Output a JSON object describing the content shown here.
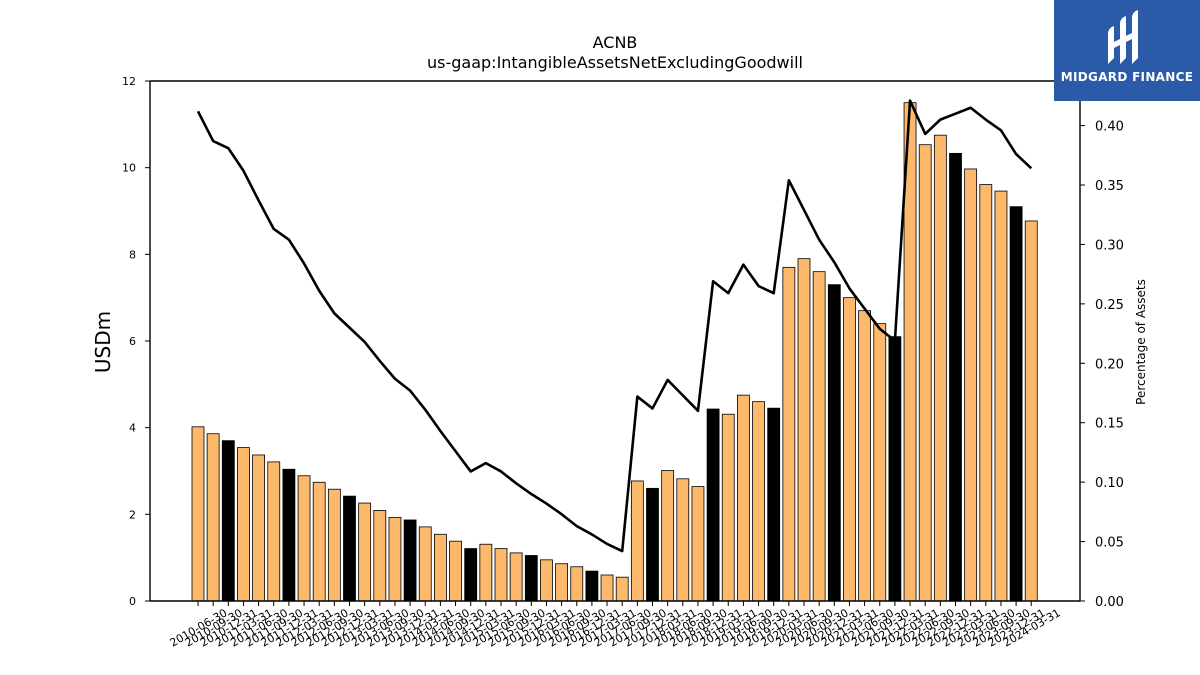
{
  "brand": {
    "name": "MIDGARD FINANCE",
    "logo_icon": "midgard-m-icon",
    "background": "#2a5aa8"
  },
  "chart_data": {
    "type": "bar",
    "title": "ACNB",
    "subtitle": "us-gaap:IntangibleAssetsNetExcludingGoodwill",
    "ylabel": "USDm",
    "y2label": "Percentage of Assets",
    "ylim": [
      0,
      12
    ],
    "yticks": [
      "0",
      "2",
      "4",
      "6",
      "8",
      "10",
      "12"
    ],
    "y2lim": [
      0,
      0.4375
    ],
    "y2ticks": [
      "0.00",
      "0.05",
      "0.10",
      "0.15",
      "0.20",
      "0.25",
      "0.30",
      "0.35",
      "0.40"
    ],
    "colors": {
      "bar": "#fdb96b",
      "bar_highlight": "#000000",
      "line": "#000000",
      "edge": "#000000"
    },
    "categories": [
      "2010-06-30",
      "2010-09-30",
      "2010-12-31",
      "2011-03-31",
      "2011-06-30",
      "2011-09-30",
      "2011-12-31",
      "2012-03-31",
      "2012-06-30",
      "2012-09-30",
      "2012-12-31",
      "2013-03-31",
      "2013-06-30",
      "2013-09-30",
      "2013-12-31",
      "2014-03-31",
      "2014-06-30",
      "2014-09-30",
      "2014-12-31",
      "2015-03-31",
      "2015-06-30",
      "2015-09-30",
      "2015-12-31",
      "2016-03-31",
      "2016-06-30",
      "2016-09-30",
      "2016-12-31",
      "2017-03-31",
      "2017-06-30",
      "2017-09-30",
      "2017-12-31",
      "2018-03-31",
      "2018-06-30",
      "2018-09-30",
      "2018-12-31",
      "2019-03-31",
      "2019-06-30",
      "2019-09-30",
      "2019-12-31",
      "2020-03-31",
      "2020-06-30",
      "2020-09-30",
      "2020-12-31",
      "2021-03-31",
      "2021-06-30",
      "2021-09-30",
      "2021-12-31",
      "2022-03-31",
      "2022-06-30",
      "2022-09-30",
      "2022-12-31",
      "2023-03-31",
      "2023-06-30",
      "2023-09-30",
      "2023-12-31",
      "2024-03-31"
    ],
    "series": [
      {
        "type": "bar",
        "values": [
          4.02,
          3.86,
          3.7,
          3.54,
          3.37,
          3.21,
          3.04,
          2.89,
          2.74,
          2.58,
          2.42,
          2.26,
          2.09,
          1.93,
          1.87,
          1.71,
          1.54,
          1.38,
          1.21,
          1.31,
          1.21,
          1.11,
          1.05,
          0.95,
          0.86,
          0.79,
          0.69,
          0.6,
          0.55,
          2.77,
          2.6,
          3.01,
          2.82,
          2.64,
          4.43,
          4.31,
          4.75,
          4.6,
          4.45,
          7.7,
          7.9,
          7.6,
          7.3,
          7.0,
          6.7,
          6.4,
          6.1,
          11.5,
          10.53,
          10.75,
          10.33,
          9.97,
          9.61,
          9.46,
          9.1,
          8.77
        ],
        "highlight": [
          false,
          false,
          true,
          false,
          false,
          false,
          true,
          false,
          false,
          false,
          true,
          false,
          false,
          false,
          true,
          false,
          false,
          false,
          true,
          false,
          false,
          false,
          true,
          false,
          false,
          false,
          true,
          false,
          false,
          false,
          true,
          false,
          false,
          false,
          true,
          false,
          false,
          false,
          true,
          false,
          false,
          false,
          true,
          false,
          false,
          false,
          true,
          false,
          false,
          false,
          true,
          false,
          false,
          false,
          true,
          false
        ]
      },
      {
        "type": "line",
        "axis": "right",
        "values": [
          0.412,
          0.387,
          0.381,
          0.362,
          0.337,
          0.313,
          0.304,
          0.284,
          0.261,
          0.242,
          0.23,
          0.218,
          0.202,
          0.187,
          0.177,
          0.161,
          0.143,
          0.126,
          0.109,
          0.116,
          0.109,
          0.099,
          0.09,
          0.082,
          0.073,
          0.063,
          0.056,
          0.048,
          0.042,
          0.172,
          0.162,
          0.186,
          0.173,
          0.16,
          0.269,
          0.259,
          0.283,
          0.265,
          0.259,
          0.354,
          0.329,
          0.304,
          0.285,
          0.263,
          0.246,
          0.229,
          0.219,
          0.421,
          0.393,
          0.405,
          0.41,
          0.415,
          0.405,
          0.396,
          0.376,
          0.364
        ]
      }
    ]
  }
}
